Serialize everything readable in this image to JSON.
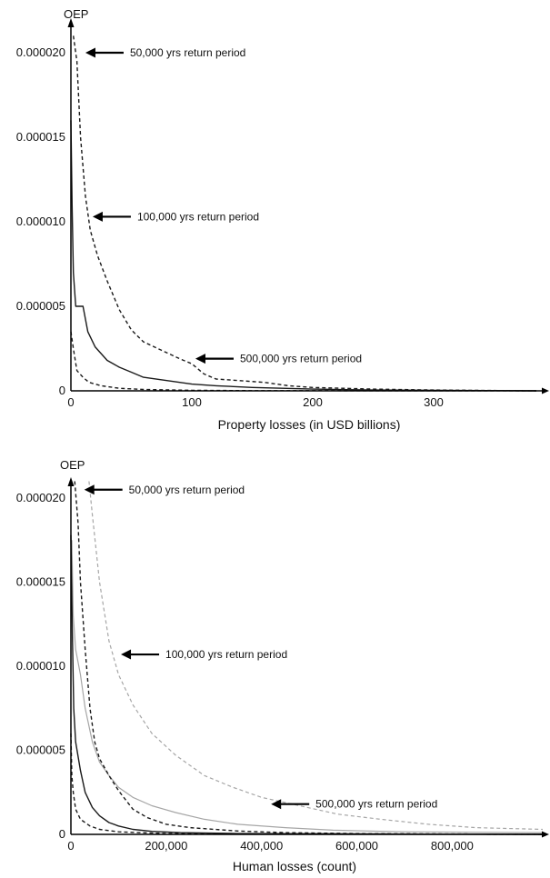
{
  "colors": {
    "axis": "#000000",
    "black_series": "#1a1a1a",
    "grey_series": "#a6a6a6",
    "background": "#ffffff"
  },
  "chart_data": [
    {
      "type": "line",
      "ylabel": "OEP",
      "xlabel": "Property losses (in USD billions)",
      "xlim": [
        0,
        385
      ],
      "ylim": [
        0,
        2.15e-05
      ],
      "x_ticks": [
        "0",
        "100",
        "200",
        "300"
      ],
      "x_tick_values": [
        0,
        100,
        200,
        300
      ],
      "y_ticks": [
        "0",
        "0.000005",
        "0.000010",
        "0.000015",
        "0.000020"
      ],
      "y_tick_values": [
        0,
        5e-06,
        1e-05,
        1.5e-05,
        2e-05
      ],
      "series": [
        {
          "style": "dashed",
          "color": "black",
          "points": [
            [
              2,
              2.1e-05
            ],
            [
              5,
              1.95e-05
            ],
            [
              8,
              1.5e-05
            ],
            [
              12,
              1.15e-05
            ],
            [
              16,
              9.5e-06
            ],
            [
              22,
              8e-06
            ],
            [
              30,
              6.5e-06
            ],
            [
              40,
              4.8e-06
            ],
            [
              50,
              3.6e-06
            ],
            [
              60,
              2.9e-06
            ],
            [
              75,
              2.4e-06
            ],
            [
              90,
              1.9e-06
            ],
            [
              100,
              1.6e-06
            ],
            [
              110,
              1e-06
            ],
            [
              120,
              7e-07
            ],
            [
              140,
              6e-07
            ],
            [
              160,
              5e-07
            ],
            [
              180,
              3e-07
            ],
            [
              200,
              2e-07
            ],
            [
              250,
              1e-07
            ],
            [
              300,
              5e-08
            ],
            [
              385,
              0
            ]
          ]
        },
        {
          "style": "solid",
          "color": "black",
          "points": [
            [
              0,
              1.6e-05
            ],
            [
              1,
              1.1e-05
            ],
            [
              2,
              7e-06
            ],
            [
              4,
              5e-06
            ],
            [
              10,
              5e-06
            ],
            [
              14,
              3.5e-06
            ],
            [
              20,
              2.6e-06
            ],
            [
              30,
              1.8e-06
            ],
            [
              40,
              1.4e-06
            ],
            [
              50,
              1.1e-06
            ],
            [
              60,
              8e-07
            ],
            [
              80,
              6e-07
            ],
            [
              100,
              4e-07
            ],
            [
              120,
              3e-07
            ],
            [
              150,
              2e-07
            ],
            [
              200,
              1e-07
            ],
            [
              250,
              5e-08
            ],
            [
              385,
              0
            ]
          ]
        },
        {
          "style": "dashed",
          "color": "black",
          "points": [
            [
              0,
              3.5e-06
            ],
            [
              2,
              2.5e-06
            ],
            [
              5,
              1.2e-06
            ],
            [
              10,
              8e-07
            ],
            [
              15,
              5e-07
            ],
            [
              25,
              3e-07
            ],
            [
              40,
              1.5e-07
            ],
            [
              60,
              8e-08
            ],
            [
              100,
              3e-08
            ],
            [
              150,
              1e-08
            ],
            [
              385,
              0
            ]
          ]
        }
      ],
      "annotations": [
        {
          "text": "50,000 yrs return period",
          "x": 12,
          "y": 2e-05
        },
        {
          "text": "100,000 yrs return period",
          "x": 18,
          "y": 1.03e-05
        },
        {
          "text": "500,000 yrs return period",
          "x": 103,
          "y": 1.9e-06
        }
      ]
    },
    {
      "type": "line",
      "ylabel": "OEP",
      "xlabel": "Human losses (count)",
      "xlim": [
        0,
        990000
      ],
      "ylim": [
        0,
        2.15e-05
      ],
      "x_ticks": [
        "0",
        "200,000",
        "400,000",
        "600,000",
        "800,000"
      ],
      "x_tick_values": [
        0,
        200000,
        400000,
        600000,
        800000
      ],
      "y_ticks": [
        "0",
        "0.000005",
        "0.000010",
        "0.000015",
        "0.000020"
      ],
      "y_tick_values": [
        0,
        5e-06,
        1e-05,
        1.5e-05,
        2e-05
      ],
      "series": [
        {
          "style": "dashed",
          "color": "grey",
          "points": [
            [
              38000,
              2.1e-05
            ],
            [
              45000,
              1.9e-05
            ],
            [
              60000,
              1.5e-05
            ],
            [
              80000,
              1.15e-05
            ],
            [
              100000,
              9.5e-06
            ],
            [
              130000,
              7.7e-06
            ],
            [
              170000,
              6e-06
            ],
            [
              220000,
              4.7e-06
            ],
            [
              280000,
              3.5e-06
            ],
            [
              340000,
              2.8e-06
            ],
            [
              400000,
              2.2e-06
            ],
            [
              480000,
              1.7e-06
            ],
            [
              560000,
              1.2e-06
            ],
            [
              650000,
              9e-07
            ],
            [
              750000,
              6e-07
            ],
            [
              850000,
              4e-07
            ],
            [
              990000,
              3e-07
            ]
          ]
        },
        {
          "style": "solid",
          "color": "grey",
          "points": [
            [
              2000,
              1.75e-05
            ],
            [
              5000,
              1.3e-05
            ],
            [
              10000,
              1.1e-05
            ],
            [
              20000,
              9.5e-06
            ],
            [
              30000,
              7.5e-06
            ],
            [
              45000,
              5.5e-06
            ],
            [
              60000,
              4.3e-06
            ],
            [
              80000,
              3.5e-06
            ],
            [
              100000,
              2.8e-06
            ],
            [
              130000,
              2.2e-06
            ],
            [
              170000,
              1.7e-06
            ],
            [
              220000,
              1.3e-06
            ],
            [
              280000,
              9e-07
            ],
            [
              350000,
              6e-07
            ],
            [
              450000,
              4e-07
            ],
            [
              550000,
              2.5e-07
            ],
            [
              700000,
              1.5e-07
            ],
            [
              990000,
              1e-07
            ]
          ]
        },
        {
          "style": "dashed",
          "color": "black",
          "points": [
            [
              8000,
              2.1e-05
            ],
            [
              15000,
              1.85e-05
            ],
            [
              20000,
              1.5e-05
            ],
            [
              30000,
              1.1e-05
            ],
            [
              40000,
              7.5e-06
            ],
            [
              50000,
              5.5e-06
            ],
            [
              60000,
              4.5e-06
            ],
            [
              80000,
              3.5e-06
            ],
            [
              100000,
              2.6e-06
            ],
            [
              130000,
              1.5e-06
            ],
            [
              160000,
              1e-06
            ],
            [
              200000,
              6e-07
            ],
            [
              250000,
              4e-07
            ],
            [
              350000,
              2e-07
            ],
            [
              450000,
              1e-07
            ],
            [
              600000,
              5e-08
            ],
            [
              990000,
              0
            ]
          ]
        },
        {
          "style": "solid",
          "color": "black",
          "points": [
            [
              0,
              1.78e-05
            ],
            [
              3000,
              1.2e-05
            ],
            [
              6000,
              7.5e-06
            ],
            [
              10000,
              5.5e-06
            ],
            [
              20000,
              3.8e-06
            ],
            [
              30000,
              2.5e-06
            ],
            [
              45000,
              1.6e-06
            ],
            [
              60000,
              1.1e-06
            ],
            [
              80000,
              7e-07
            ],
            [
              100000,
              5e-07
            ],
            [
              130000,
              3e-07
            ],
            [
              170000,
              1.8e-07
            ],
            [
              230000,
              1e-07
            ],
            [
              350000,
              5e-08
            ],
            [
              990000,
              0
            ]
          ]
        },
        {
          "style": "dashed",
          "color": "black",
          "points": [
            [
              0,
              6e-06
            ],
            [
              2000,
              3.5e-06
            ],
            [
              5000,
              2.5e-06
            ],
            [
              10000,
              1.5e-06
            ],
            [
              20000,
              9e-07
            ],
            [
              40000,
              5e-07
            ],
            [
              60000,
              3e-07
            ],
            [
              100000,
              1.5e-07
            ],
            [
              200000,
              5e-08
            ],
            [
              990000,
              0
            ]
          ]
        }
      ],
      "annotations": [
        {
          "text": "50,000 yrs return period",
          "x": 28000,
          "y": 2.05e-05
        },
        {
          "text": "100,000 yrs return period",
          "x": 105000,
          "y": 1.07e-05
        },
        {
          "text": "500,000 yrs return period",
          "x": 420000,
          "y": 1.8e-06
        }
      ]
    }
  ]
}
